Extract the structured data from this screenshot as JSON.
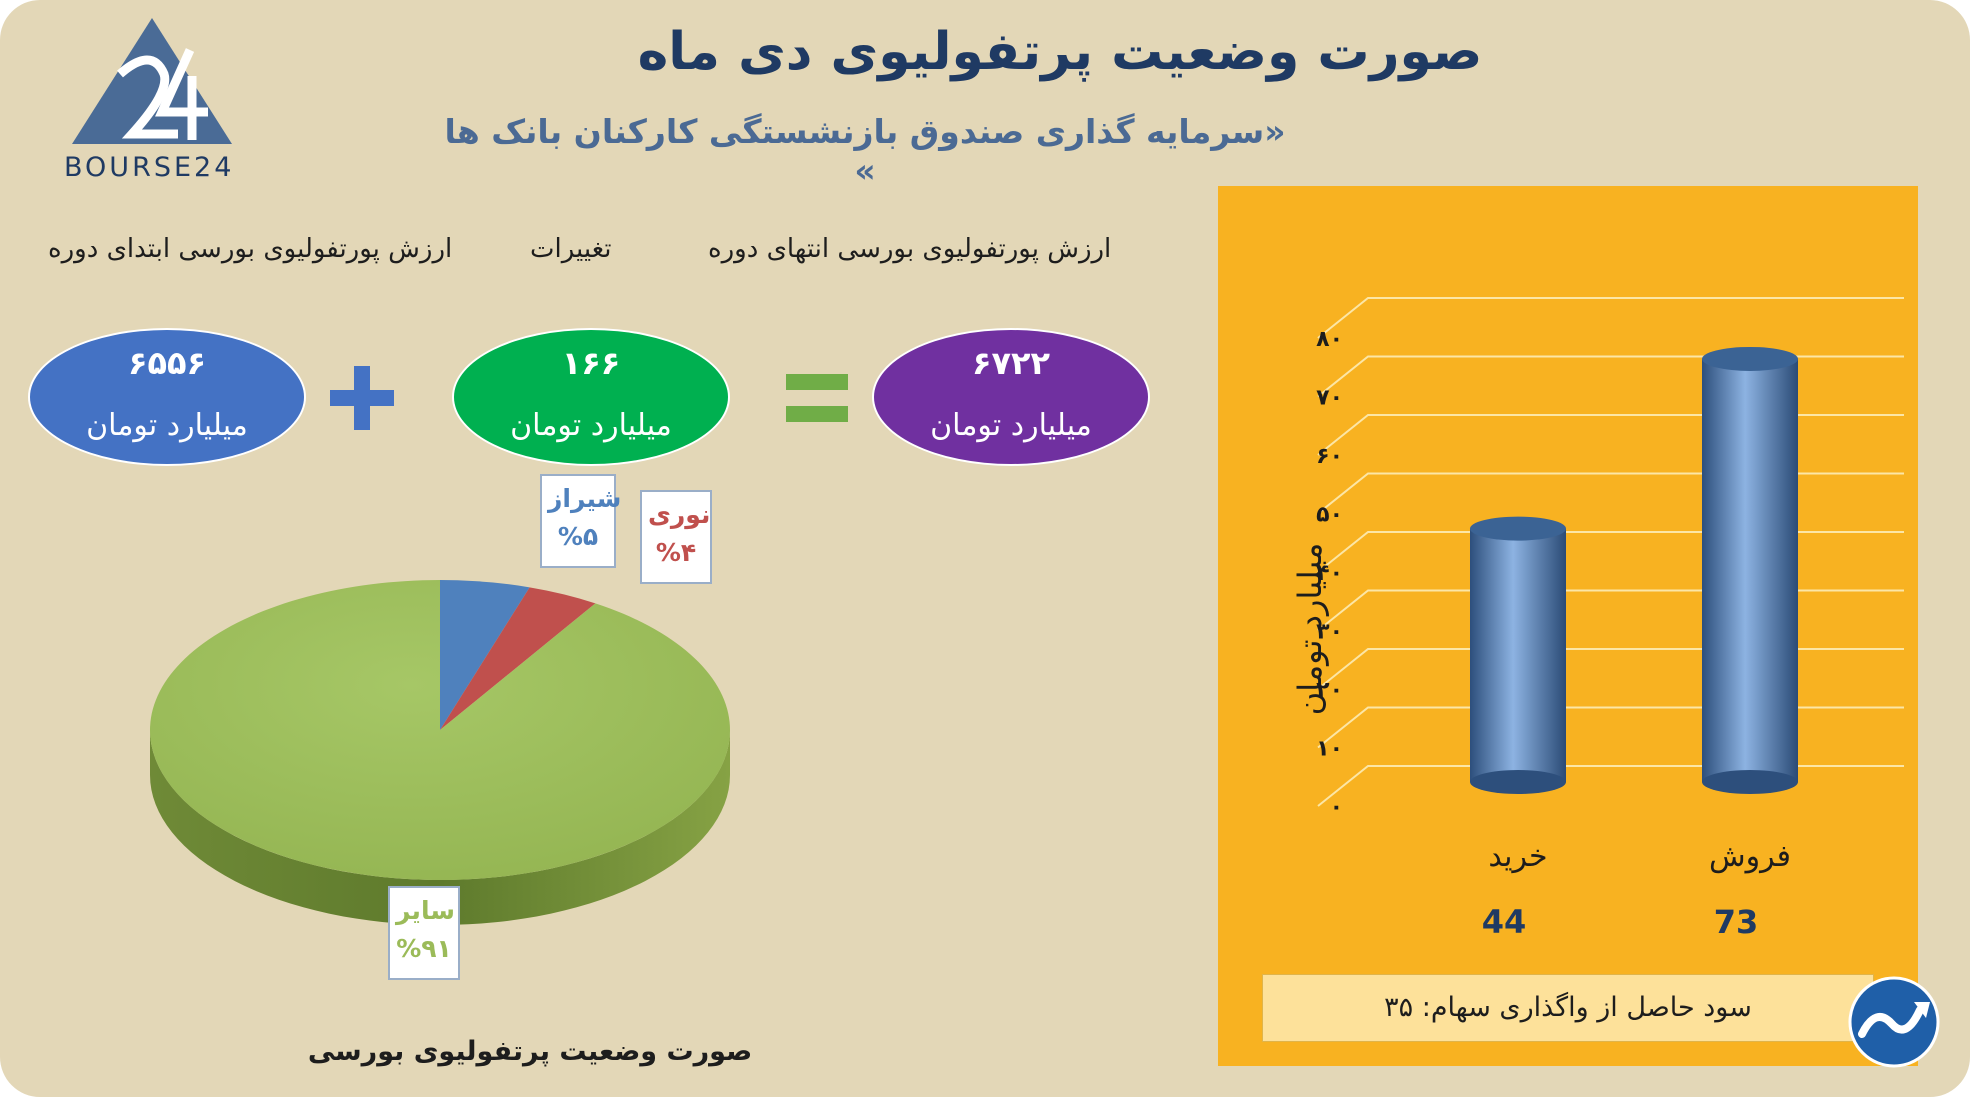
{
  "header": {
    "title": "صورت وضعیت پرتفولیوی دی ماه",
    "subtitle": "«سرمایه گذاری صندوق بازنشستگی کارکنان بانک ها »"
  },
  "logo": {
    "text": "BOURSE24",
    "color": "#4a6b96"
  },
  "equation": {
    "labels": {
      "end": "ارزش پورتفولیوی بورسی انتهای دوره",
      "change": "تغییرات",
      "start": "ارزش پورتفولیوی بورسی ابتدای دوره"
    },
    "end_value": "۶۷۲۲",
    "change_value": "۱۶۶",
    "start_value": "۶۵۵۶",
    "unit": "میلیارد تومان",
    "colors": {
      "end": "#7030a0",
      "change": "#00b050",
      "start": "#4472c4",
      "plus": "#4472c4",
      "equals": "#70ad47"
    }
  },
  "summary": {
    "text": "سود حاصل از واگذاری سهام: ۳۵"
  },
  "chart_data": [
    {
      "type": "pie",
      "caption": "صورت وضعیت پرتفولیوی بورسی",
      "slices": [
        {
          "name": "شیراز",
          "value": 5,
          "label": "%۵",
          "color": "#4f81bd"
        },
        {
          "name": "نوری",
          "value": 4,
          "label": "%۴",
          "color": "#c0504d"
        },
        {
          "name": "سایر",
          "value": 91,
          "label": "%۹۱",
          "color": "#9bbb59"
        }
      ],
      "label_colors": {
        "شیراز": "#4f81bd",
        "نوری": "#c0504d",
        "سایر": "#9bbb59"
      }
    },
    {
      "type": "bar",
      "ylabel": "میلیارد تومان",
      "ylim": [
        0,
        80
      ],
      "yticks": [
        0,
        10,
        20,
        30,
        40,
        50,
        60,
        70,
        80
      ],
      "ytick_labels": [
        "۰",
        "۱۰",
        "۲۰",
        "۳۰",
        "۴۰",
        "۵۰",
        "۶۰",
        "۷۰",
        "۸۰"
      ],
      "grid": true,
      "categories": [
        "خرید",
        "فروش"
      ],
      "values": [
        44,
        73
      ],
      "value_labels": [
        "44",
        "73"
      ],
      "bar_color": "#4f81bd"
    }
  ]
}
